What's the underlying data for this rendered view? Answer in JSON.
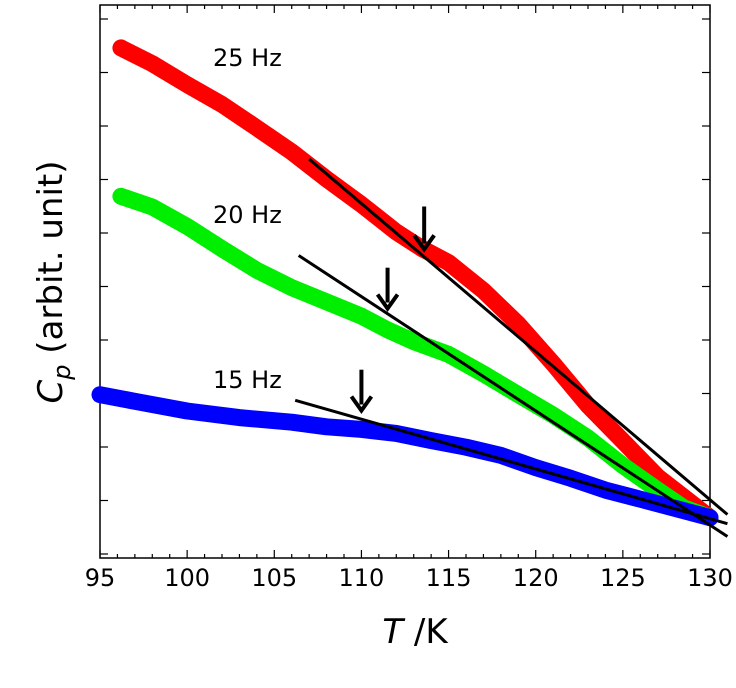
{
  "chart_data": {
    "type": "line",
    "xlabel_italic": "T",
    "xlabel_rest": " /K",
    "ylabel_italic": "C",
    "ylabel_sub": "p",
    "ylabel_rest": " (arbit. unit)",
    "xlim": [
      95,
      130
    ],
    "ylim": [
      0,
      1
    ],
    "x_ticks": [
      95,
      100,
      105,
      110,
      115,
      120,
      125,
      130
    ],
    "grid": false,
    "series": [
      {
        "name": "25 Hz",
        "color": "#ff0000",
        "x": [
          96.2,
          98,
          100,
          102,
          104,
          106,
          108,
          110,
          112,
          113.5,
          115,
          117,
          119,
          121,
          123,
          125,
          127,
          128.5,
          130
        ],
        "y": [
          0.961,
          0.93,
          0.889,
          0.85,
          0.804,
          0.757,
          0.704,
          0.654,
          0.6,
          0.567,
          0.54,
          0.485,
          0.419,
          0.342,
          0.26,
          0.19,
          0.12,
          0.08,
          0.04
        ]
      },
      {
        "name": "20 Hz",
        "color": "#00ee00",
        "x": [
          96.2,
          98,
          100,
          102,
          104,
          106,
          108,
          110,
          111.5,
          113,
          115,
          117,
          119,
          121,
          123,
          125,
          127,
          128.5,
          130
        ],
        "y": [
          0.67,
          0.649,
          0.611,
          0.567,
          0.525,
          0.491,
          0.463,
          0.435,
          0.408,
          0.385,
          0.36,
          0.322,
          0.281,
          0.241,
          0.196,
          0.142,
          0.094,
          0.059,
          0.04
        ]
      },
      {
        "name": "15 Hz",
        "color": "#0000ff",
        "x": [
          95,
          97,
          100,
          103,
          106,
          108,
          110,
          112,
          114,
          116,
          118,
          120,
          122,
          124,
          126,
          128,
          130
        ],
        "y": [
          0.281,
          0.268,
          0.249,
          0.236,
          0.227,
          0.218,
          0.213,
          0.205,
          0.191,
          0.178,
          0.162,
          0.138,
          0.117,
          0.094,
          0.076,
          0.058,
          0.04
        ]
      }
    ],
    "tangent_lines": [
      {
        "series": "25 Hz",
        "x": [
          107,
          131
        ],
        "y": [
          0.743,
          0.046
        ]
      },
      {
        "series": "20 Hz",
        "x": [
          106.4,
          131
        ],
        "y": [
          0.554,
          0.003
        ]
      },
      {
        "series": "15 Hz",
        "x": [
          106.2,
          131
        ],
        "y": [
          0.27,
          0.028
        ]
      }
    ],
    "arrows": [
      {
        "series": "25 Hz",
        "x": 113.6,
        "y_top": 0.65,
        "y_tip": 0.566
      },
      {
        "series": "20 Hz",
        "x": 111.5,
        "y_top": 0.53,
        "y_tip": 0.45
      },
      {
        "series": "15 Hz",
        "x": 110,
        "y_top": 0.33,
        "y_tip": 0.25
      }
    ]
  }
}
